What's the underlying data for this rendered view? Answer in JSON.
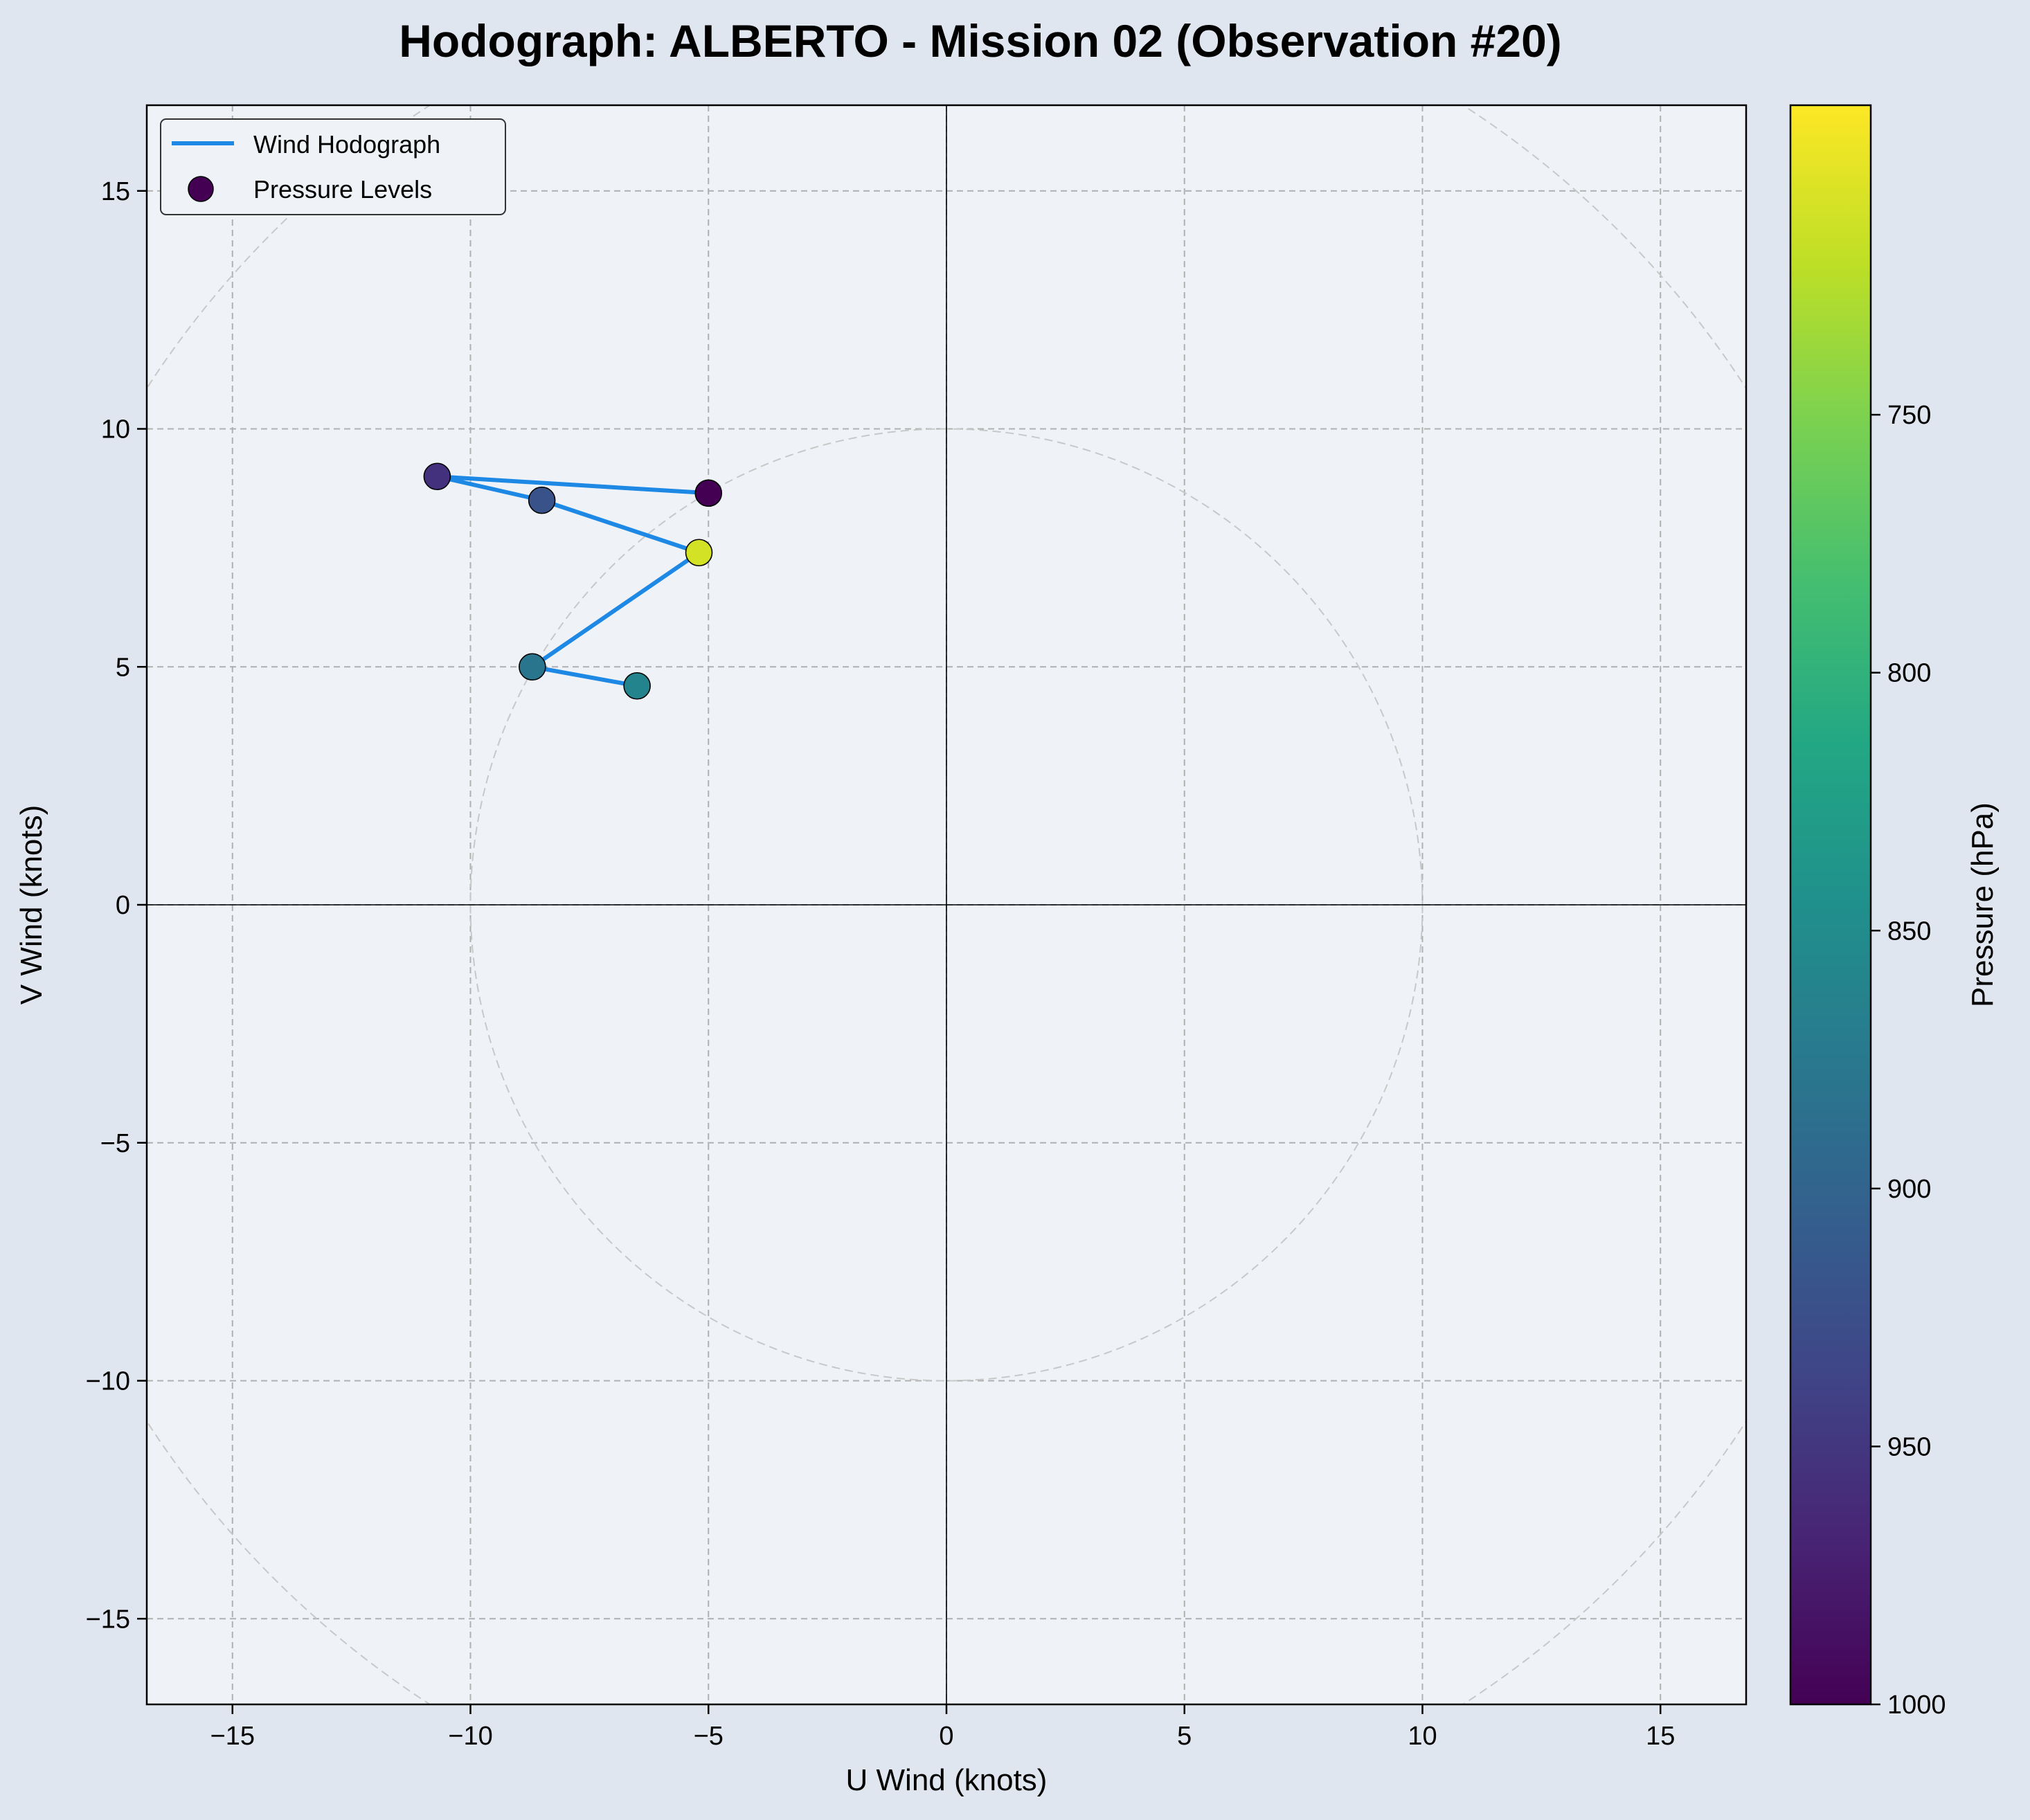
{
  "chart_data": {
    "type": "scatter",
    "title": "Hodograph: ALBERTO - Mission 02 (Observation #20)",
    "xlabel": "U Wind (knots)",
    "ylabel": "V Wind (knots)",
    "xlim": [
      -16.8,
      16.8
    ],
    "ylim": [
      -16.8,
      16.8
    ],
    "xticks": [
      -15,
      -10,
      -5,
      0,
      5,
      10,
      15
    ],
    "yticks": [
      -15,
      -10,
      -5,
      0,
      5,
      10,
      15
    ],
    "xtick_labels": [
      "−15",
      "−10",
      "−5",
      "0",
      "5",
      "10",
      "15"
    ],
    "ytick_labels": [
      "−15",
      "−10",
      "−5",
      "0",
      "5",
      "10",
      "15"
    ],
    "grid": true,
    "range_rings": [
      10,
      20
    ],
    "legend": {
      "position": "top-left",
      "entries": [
        "Wind Hodograph",
        "Pressure Levels"
      ]
    },
    "series": [
      {
        "name": "Wind Hodograph",
        "kind": "line",
        "color": "#1e88e5",
        "u": [
          -5.0,
          -10.7,
          -8.5,
          -5.2,
          -8.7,
          -6.5
        ],
        "v": [
          8.65,
          9.0,
          8.5,
          7.4,
          5.0,
          4.6
        ]
      },
      {
        "name": "Pressure Levels",
        "kind": "scatter",
        "u": [
          -5.0,
          -10.7,
          -8.5,
          -5.2,
          -8.7,
          -6.5
        ],
        "v": [
          8.65,
          9.0,
          8.5,
          7.4,
          5.0,
          4.6
        ],
        "pressure_hPa": [
          1000,
          955,
          920,
          710,
          880,
          860
        ]
      }
    ],
    "colorbar": {
      "label": "Pressure (hPa)",
      "colormap": "viridis",
      "range": [
        1000,
        690
      ],
      "ticks": [
        1000,
        950,
        900,
        850,
        800,
        750
      ],
      "tick_labels": [
        "1000",
        "950",
        "900",
        "850",
        "800",
        "750"
      ]
    },
    "colors": {
      "figure_bg": "#e0e6ef",
      "axes_bg": "#eff3f8",
      "grid": "#b0b0b0",
      "ring": "#c8c8c8",
      "line": "#1e88e5"
    }
  }
}
